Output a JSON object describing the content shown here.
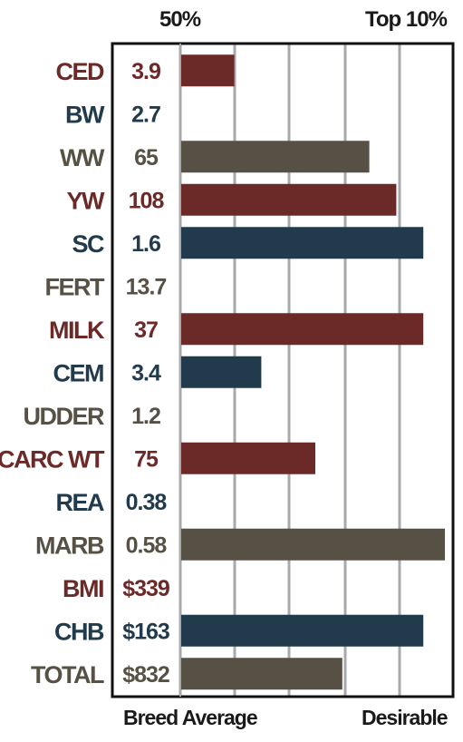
{
  "header": {
    "left_label": "50%",
    "right_label": "Top 10%"
  },
  "footer": {
    "left_label": "Breed Average",
    "right_label": "Desirable"
  },
  "colors": {
    "maroon": "#6b2a28",
    "navy": "#213b4c",
    "brown": "#575044",
    "grid": "#a9a9ad",
    "frame": "#111111"
  },
  "chart_data": {
    "type": "bar",
    "orientation": "horizontal",
    "xlim": [
      0,
      100
    ],
    "categories": [
      "CED",
      "BW",
      "WW",
      "YW",
      "SC",
      "FERT",
      "MILK",
      "CEM",
      "UDDER",
      "CARC WT",
      "REA",
      "MARB",
      "BMI",
      "CHB",
      "TOTAL"
    ],
    "value_labels": [
      "3.9",
      "2.7",
      "65",
      "108",
      "1.6",
      "13.7",
      "37",
      "3.4",
      "1.2",
      "75",
      "0.38",
      "0.58",
      "$339",
      "$163",
      "$832"
    ],
    "bar_values": [
      20,
      0,
      70,
      80,
      90,
      0,
      90,
      30,
      0,
      50,
      0,
      98,
      0,
      90,
      60
    ],
    "bar_colors": [
      "#6b2a28",
      "#213b4c",
      "#575044",
      "#6b2a28",
      "#213b4c",
      "#575044",
      "#6b2a28",
      "#213b4c",
      "#575044",
      "#6b2a28",
      "#213b4c",
      "#575044",
      "#6b2a28",
      "#213b4c",
      "#575044"
    ],
    "grid": true
  }
}
